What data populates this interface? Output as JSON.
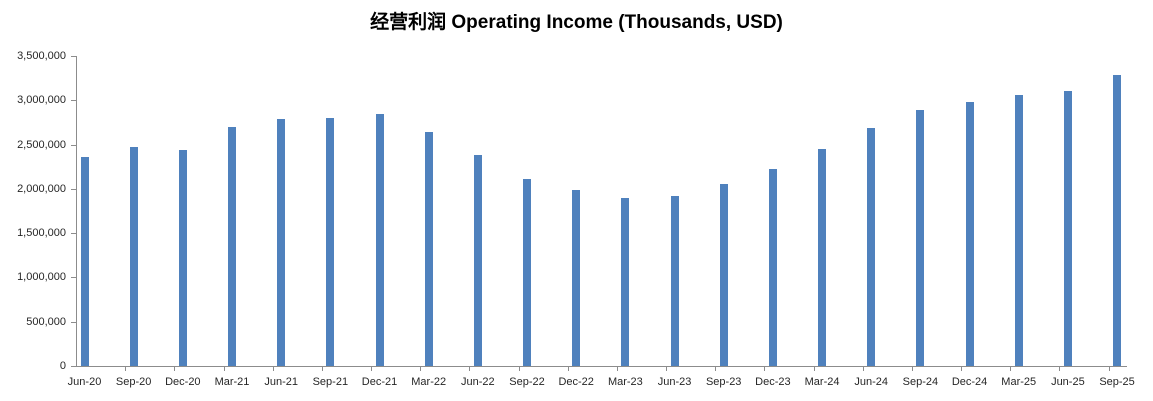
{
  "chart_data": {
    "type": "bar",
    "title": "经营利润 Operating Income (Thousands, USD)",
    "categories": [
      "Jun-20",
      "Sep-20",
      "Dec-20",
      "Mar-21",
      "Jun-21",
      "Sep-21",
      "Dec-21",
      "Mar-22",
      "Jun-22",
      "Sep-22",
      "Dec-22",
      "Mar-23",
      "Jun-23",
      "Sep-23",
      "Dec-23",
      "Mar-24",
      "Jun-24",
      "Sep-24",
      "Dec-24",
      "Mar-25",
      "Jun-25",
      "Sep-25"
    ],
    "values": [
      2360000,
      2470000,
      2440000,
      2700000,
      2790000,
      2800000,
      2850000,
      2640000,
      2380000,
      2110000,
      1990000,
      1900000,
      1920000,
      2060000,
      2220000,
      2450000,
      2690000,
      2890000,
      2980000,
      3060000,
      3100000,
      3280000
    ],
    "y_tick_labels": [
      "0",
      "500,000",
      "1,000,000",
      "1,500,000",
      "2,000,000",
      "2,500,000",
      "3,000,000",
      "3,500,000"
    ],
    "ylim": [
      0,
      3500000
    ],
    "y_tick_interval": 500000,
    "xlabel": "",
    "ylabel": "",
    "grid": false,
    "legend": false,
    "bar_color": "#4F81BD",
    "axis_color": "#8C8C8C",
    "label_color": "#262626"
  }
}
